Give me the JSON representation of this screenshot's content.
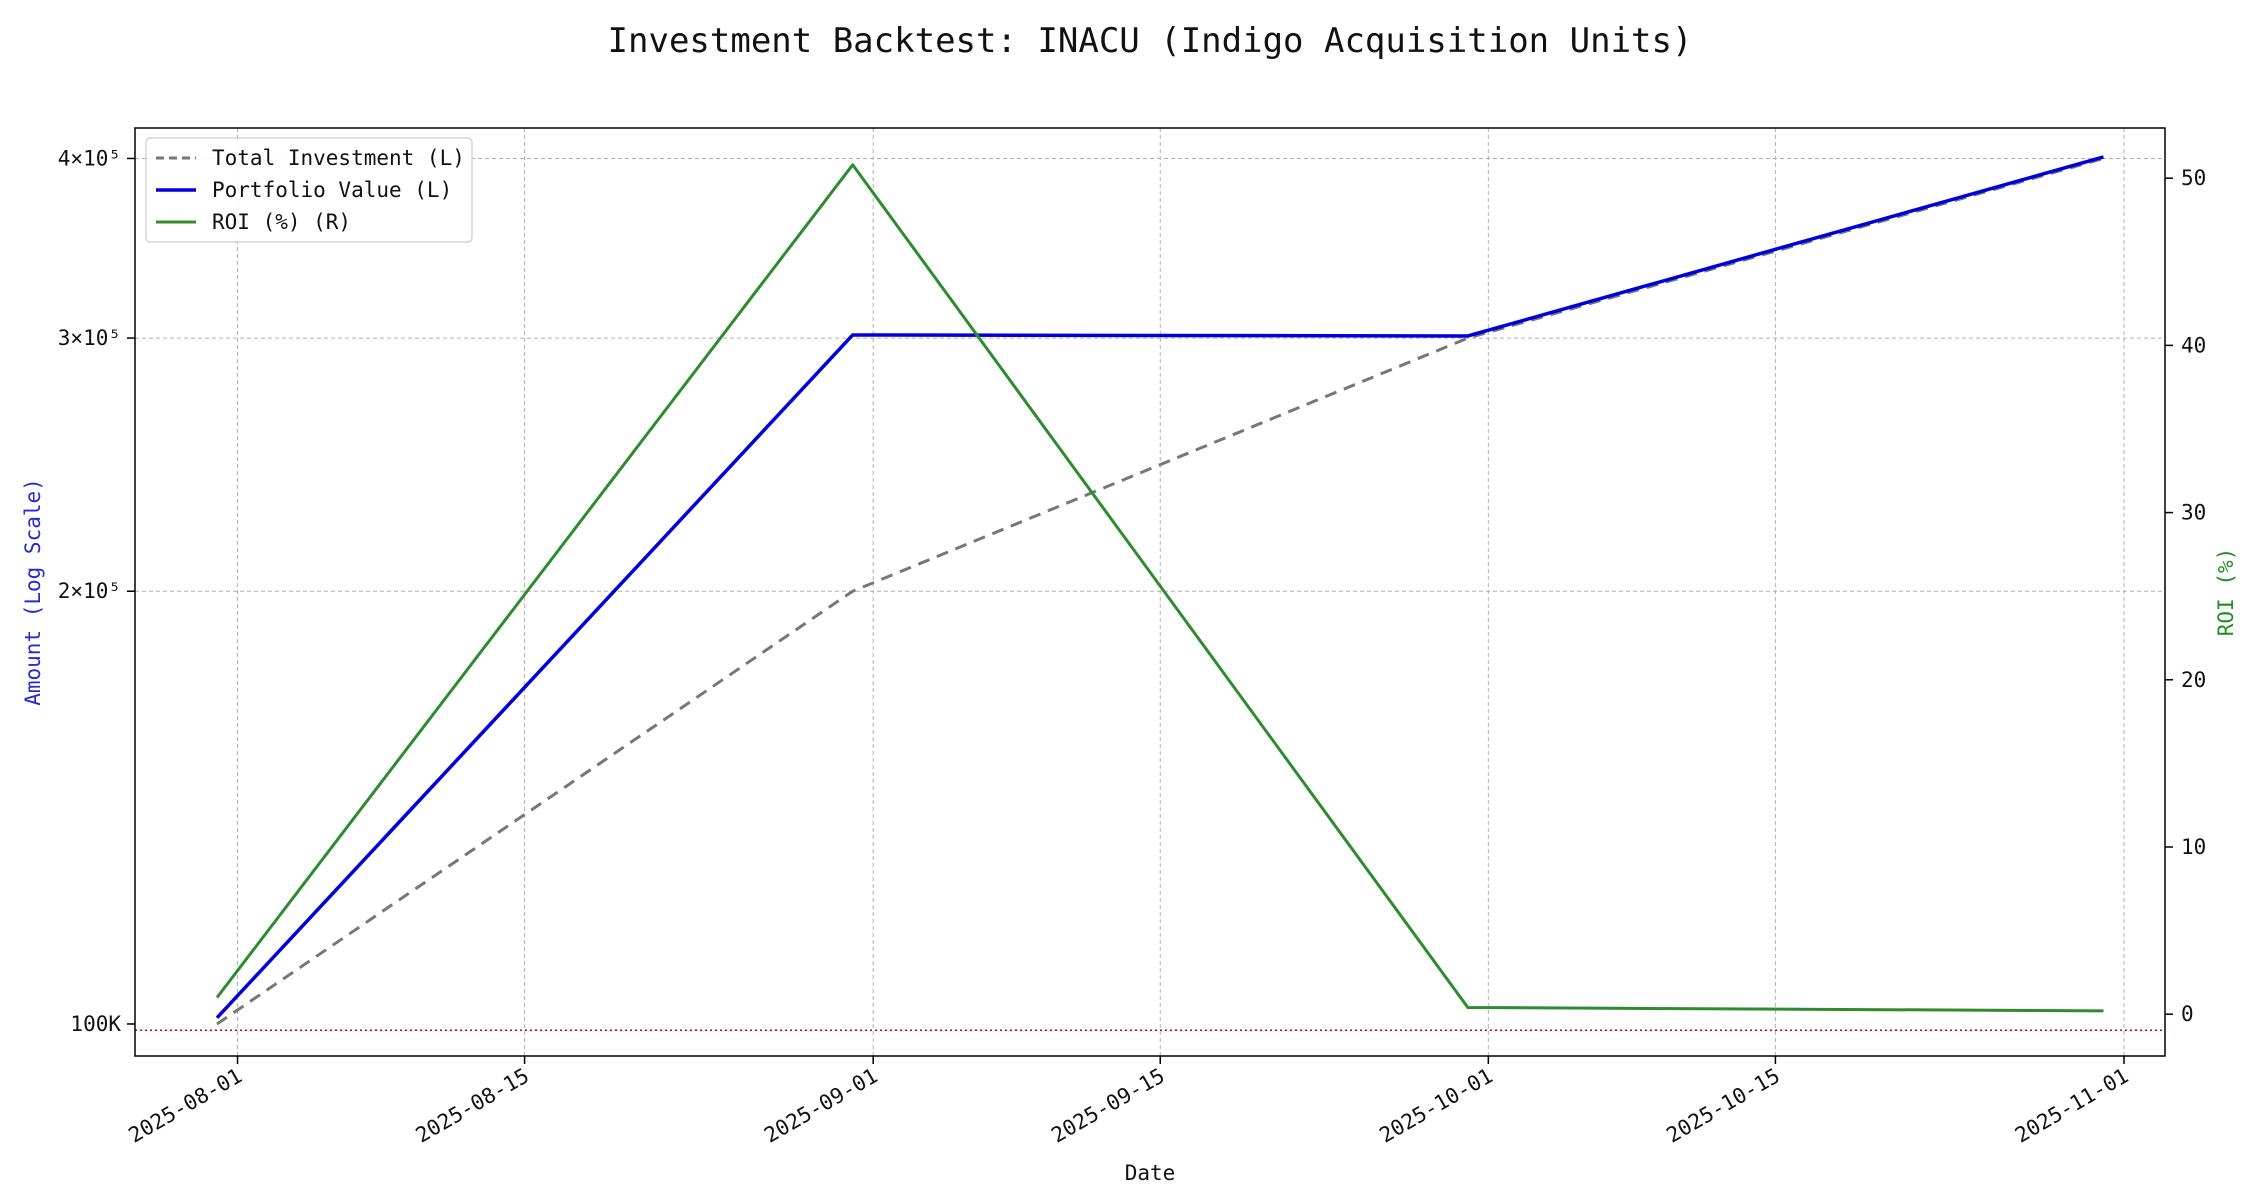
{
  "chart_data": {
    "type": "line",
    "title": "Investment Backtest: INACU (Indigo Acquisition Units)",
    "xlabel": "Date",
    "ylabel_left": "Amount (Log Scale)",
    "ylabel_right": "ROI (%)",
    "x": [
      "2025-07-31",
      "2025-08-31",
      "2025-09-30",
      "2025-10-31"
    ],
    "xlim": [
      "2025-07-27",
      "2025-11-03"
    ],
    "x_ticks": [
      "2025-08-01",
      "2025-08-15",
      "2025-09-01",
      "2025-09-15",
      "2025-10-01",
      "2025-10-15",
      "2025-11-01"
    ],
    "y_left": {
      "scale": "log",
      "lim": [
        95000,
        420000
      ],
      "ticks": [
        {
          "value": 100000,
          "label": "100K",
          "color": "#0000cc"
        },
        {
          "value": 200000,
          "label": "2×10⁵",
          "color": "#111111"
        },
        {
          "value": 300000,
          "label": "3×10⁵",
          "color": "#111111"
        },
        {
          "value": 400000,
          "label": "4×10⁵",
          "color": "#111111"
        }
      ]
    },
    "y_right": {
      "scale": "linear",
      "lim": [
        -2.5,
        53
      ],
      "ticks": [
        0,
        10,
        20,
        30,
        40,
        50
      ],
      "color": "#228b22"
    },
    "series": [
      {
        "name": "Total Investment (L)",
        "axis": "left",
        "color": "#777777",
        "dash": "12 8",
        "width": 3,
        "values": [
          100000,
          200000,
          300000,
          400000
        ]
      },
      {
        "name": "Portfolio Value (L)",
        "axis": "left",
        "color": "#0000dd",
        "dash": "",
        "width": 3.5,
        "values": [
          101000,
          301500,
          301000,
          401000
        ]
      },
      {
        "name": "ROI (%) (R)",
        "axis": "right",
        "color": "#2e8b2e",
        "dash": "",
        "width": 3,
        "values": [
          1.0,
          50.8,
          0.4,
          0.2
        ]
      }
    ],
    "reference_line": {
      "axis": "left",
      "value": 99000,
      "color": "#cc0000",
      "style": "dotted"
    },
    "legend_position": "upper-left",
    "grid": true
  }
}
